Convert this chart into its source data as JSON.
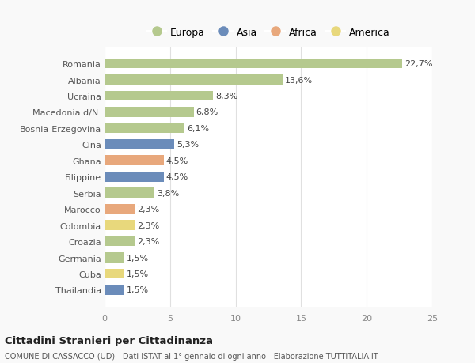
{
  "countries": [
    "Romania",
    "Albania",
    "Ucraina",
    "Macedonia d/N.",
    "Bosnia-Erzegovina",
    "Cina",
    "Ghana",
    "Filippine",
    "Serbia",
    "Marocco",
    "Colombia",
    "Croazia",
    "Germania",
    "Cuba",
    "Thailandia"
  ],
  "values": [
    22.7,
    13.6,
    8.3,
    6.8,
    6.1,
    5.3,
    4.5,
    4.5,
    3.8,
    2.3,
    2.3,
    2.3,
    1.5,
    1.5,
    1.5
  ],
  "labels": [
    "22,7%",
    "13,6%",
    "8,3%",
    "6,8%",
    "6,1%",
    "5,3%",
    "4,5%",
    "4,5%",
    "3,8%",
    "2,3%",
    "2,3%",
    "2,3%",
    "1,5%",
    "1,5%",
    "1,5%"
  ],
  "continents": [
    "Europa",
    "Europa",
    "Europa",
    "Europa",
    "Europa",
    "Asia",
    "Africa",
    "Asia",
    "Europa",
    "Africa",
    "America",
    "Europa",
    "Europa",
    "America",
    "Asia"
  ],
  "continent_colors": {
    "Europa": "#b5c98e",
    "Asia": "#6b8cba",
    "Africa": "#e8a87c",
    "America": "#e8d87c"
  },
  "legend_order": [
    "Europa",
    "Asia",
    "Africa",
    "America"
  ],
  "title": "Cittadini Stranieri per Cittadinanza",
  "subtitle": "COMUNE DI CASSACCO (UD) - Dati ISTAT al 1° gennaio di ogni anno - Elaborazione TUTTITALIA.IT",
  "xlim": [
    0,
    25
  ],
  "xticks": [
    0,
    5,
    10,
    15,
    20,
    25
  ],
  "background_color": "#f9f9f9",
  "bar_background": "#ffffff",
  "grid_color": "#e0e0e0"
}
